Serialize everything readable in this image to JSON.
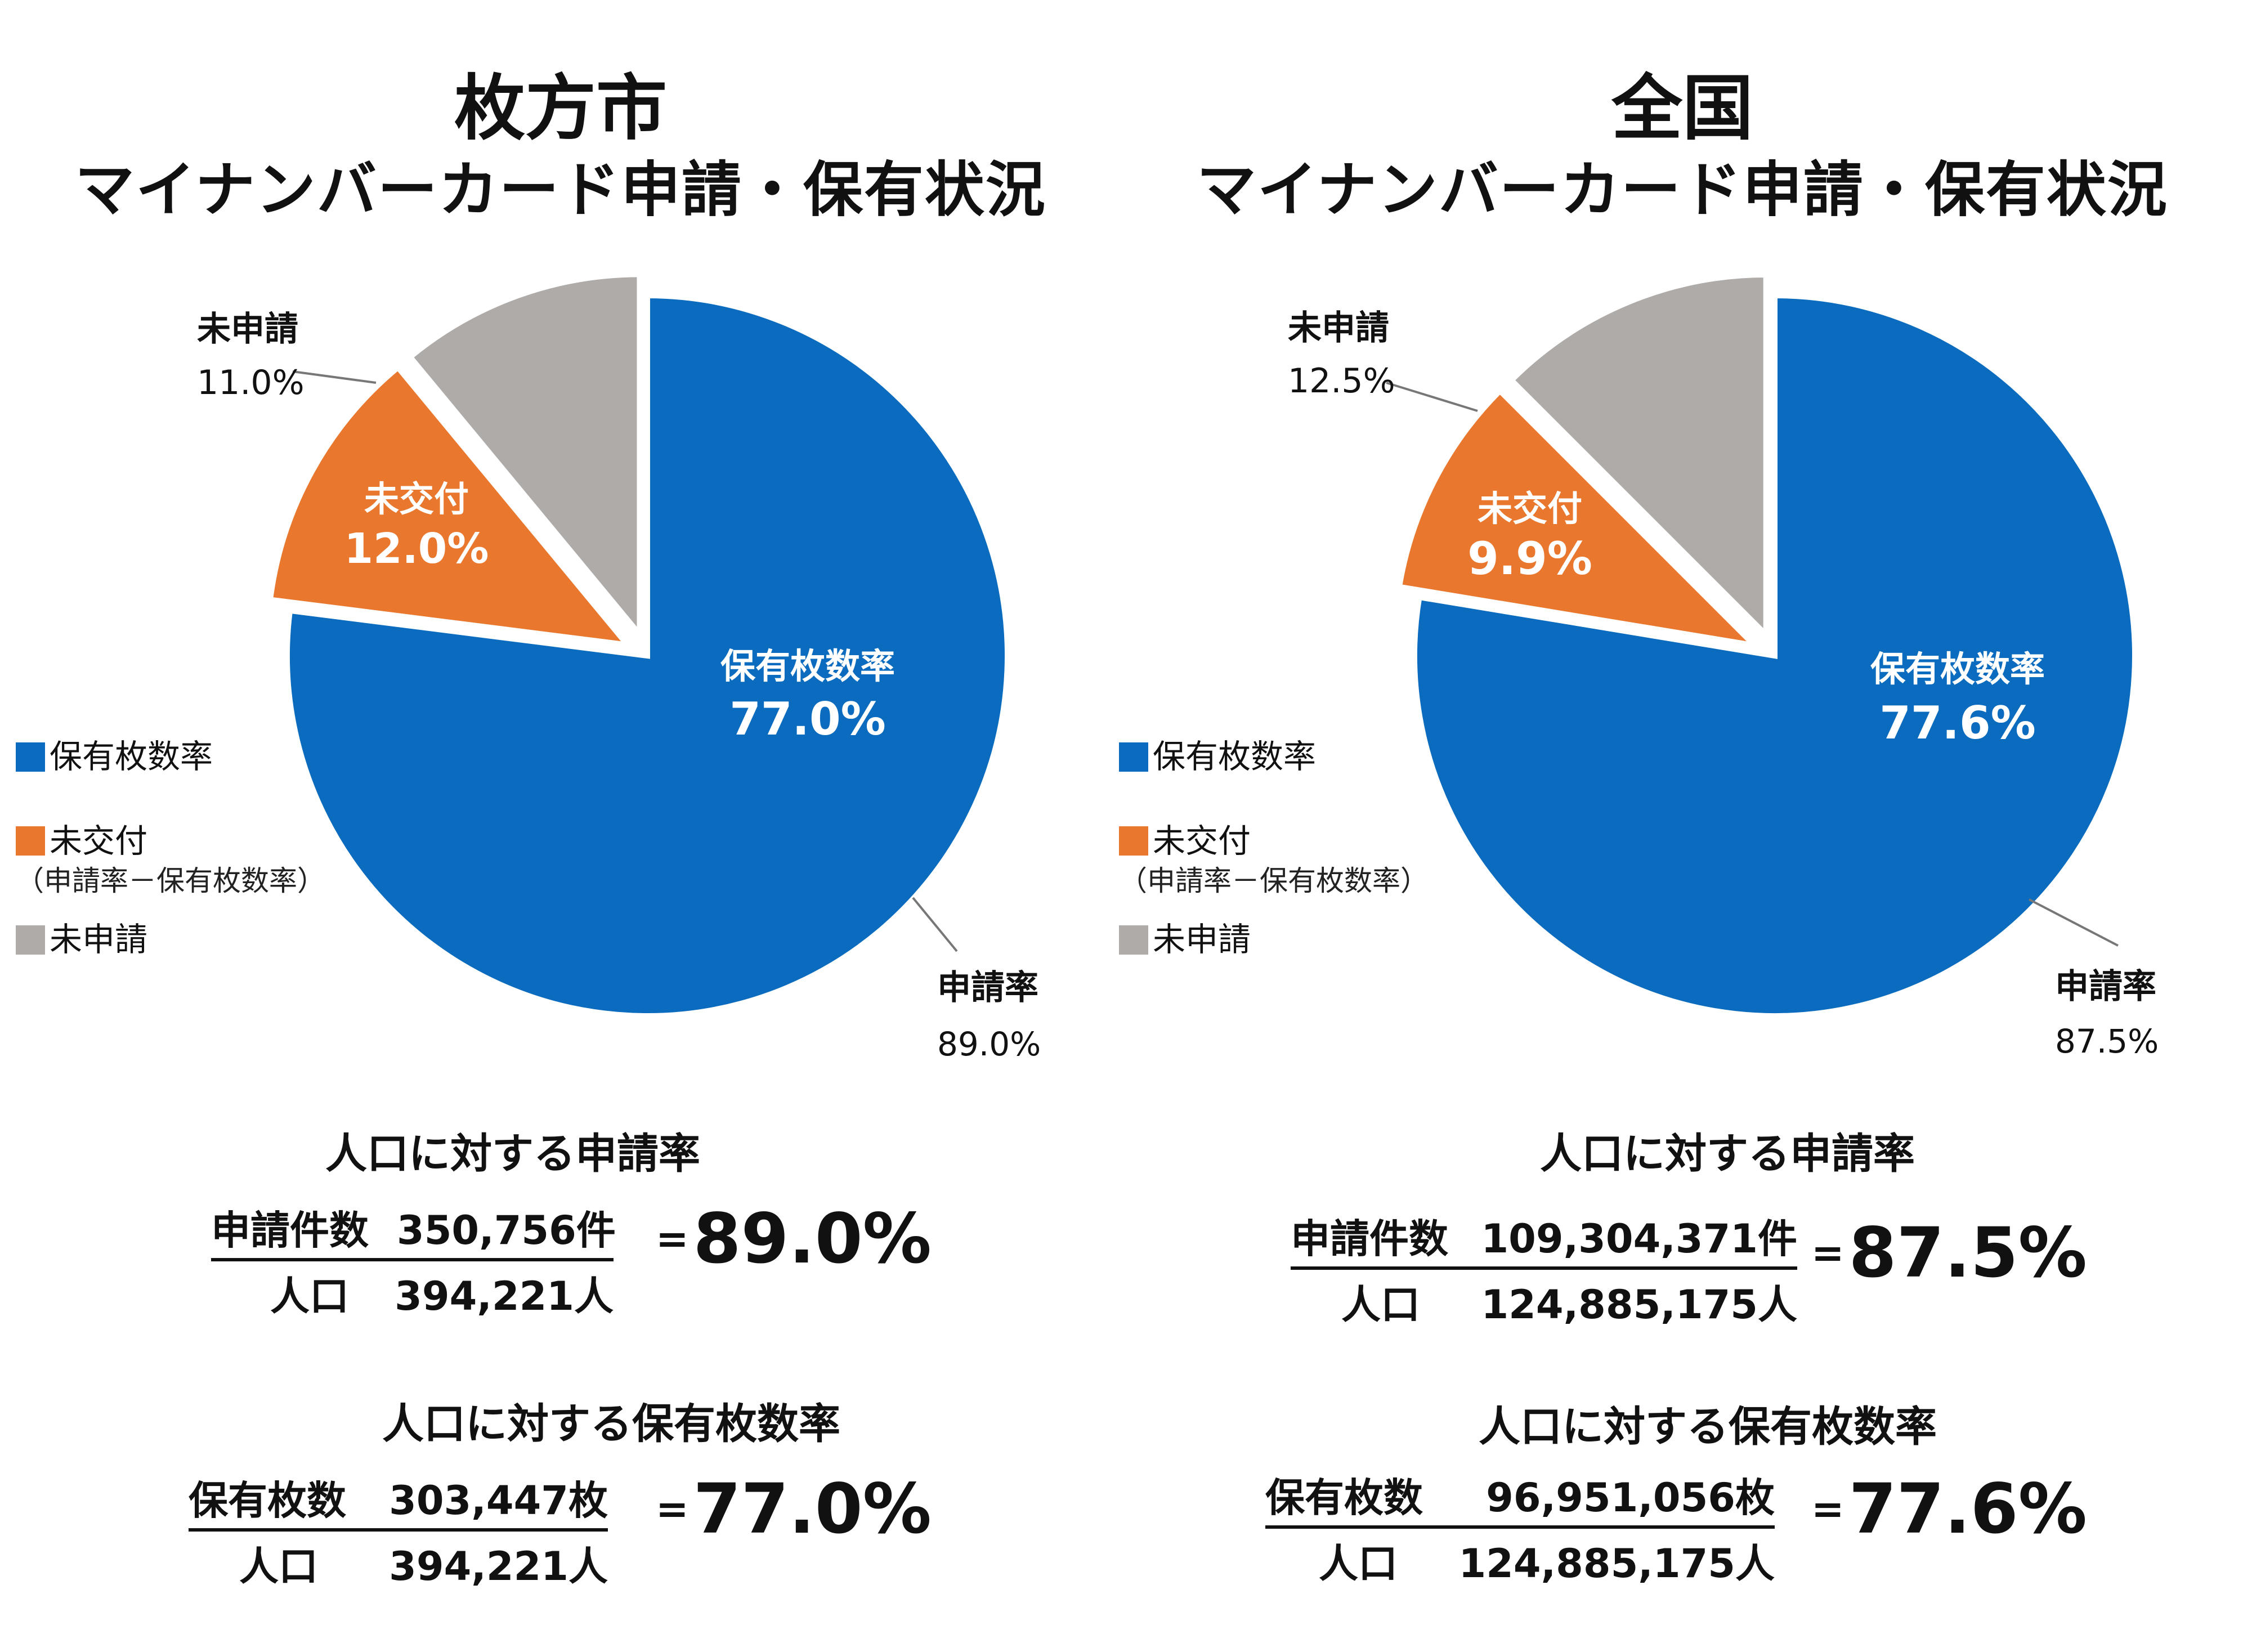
{
  "colors": {
    "blue": "#0B6CBF",
    "orange": "#E9782E",
    "gray": "#AEABA9"
  },
  "legend": {
    "holding": "保有枚数率",
    "unissued": "未交付",
    "unissued_note": "（申請率－保有枚数率）",
    "not_applied": "未申請"
  },
  "panels": [
    {
      "title_line1": "枚方市",
      "title_line2": "マイナンバーカード申請・保有状況",
      "pie": {
        "slices": [
          {
            "name": "保有枚数率",
            "value": 77.0,
            "label": "77.0%",
            "color": "#0B6CBF"
          },
          {
            "name": "未交付",
            "value": 12.0,
            "label": "12.0%",
            "color": "#E9782E"
          },
          {
            "name": "未申請",
            "value": 11.0,
            "label": "11.0%",
            "color": "#AEABA9"
          }
        ],
        "apply_rate_label": "申請率",
        "apply_rate_value": "89.0%"
      },
      "apply": {
        "heading": "人口に対する申請率",
        "num_label": "申請件数",
        "num_value": "350,756件",
        "den_label": "人口",
        "den_value": "394,221人",
        "eq": "=",
        "result": "89.0%"
      },
      "hold": {
        "heading": "人口に対する保有枚数率",
        "num_label": "保有枚数",
        "num_value": "303,447枚",
        "den_label": "人口",
        "den_value": "394,221人",
        "eq": "=",
        "result": "77.0%"
      }
    },
    {
      "title_line1": "全国",
      "title_line2": "マイナンバーカード申請・保有状況",
      "pie": {
        "slices": [
          {
            "name": "保有枚数率",
            "value": 77.6,
            "label": "77.6%",
            "color": "#0B6CBF"
          },
          {
            "name": "未交付",
            "value": 9.9,
            "label": "9.9%",
            "color": "#E9782E"
          },
          {
            "name": "未申請",
            "value": 12.5,
            "label": "12.5%",
            "color": "#AEABA9"
          }
        ],
        "apply_rate_label": "申請率",
        "apply_rate_value": "87.5%"
      },
      "apply": {
        "heading": "人口に対する申請率",
        "num_label": "申請件数",
        "num_value": "109,304,371件",
        "den_label": "人口",
        "den_value": "124,885,175人",
        "eq": "=",
        "result": "87.5%"
      },
      "hold": {
        "heading": "人口に対する保有枚数率",
        "num_label": "保有枚数",
        "num_value": "96,951,056枚",
        "den_label": "人口",
        "den_value": "124,885,175人",
        "eq": "=",
        "result": "77.6%"
      }
    }
  ],
  "chart_data": [
    {
      "type": "pie",
      "title": "枚方市 マイナンバーカード申請・保有状況",
      "categories": [
        "保有枚数率",
        "未交付",
        "未申請"
      ],
      "values": [
        77.0,
        12.0,
        11.0
      ],
      "annotations": {
        "申請率": 89.0
      },
      "legend": "left"
    },
    {
      "type": "pie",
      "title": "全国 マイナンバーカード申請・保有状況",
      "categories": [
        "保有枚数率",
        "未交付",
        "未申請"
      ],
      "values": [
        77.6,
        9.9,
        12.5
      ],
      "annotations": {
        "申請率": 87.5
      },
      "legend": "left"
    }
  ]
}
